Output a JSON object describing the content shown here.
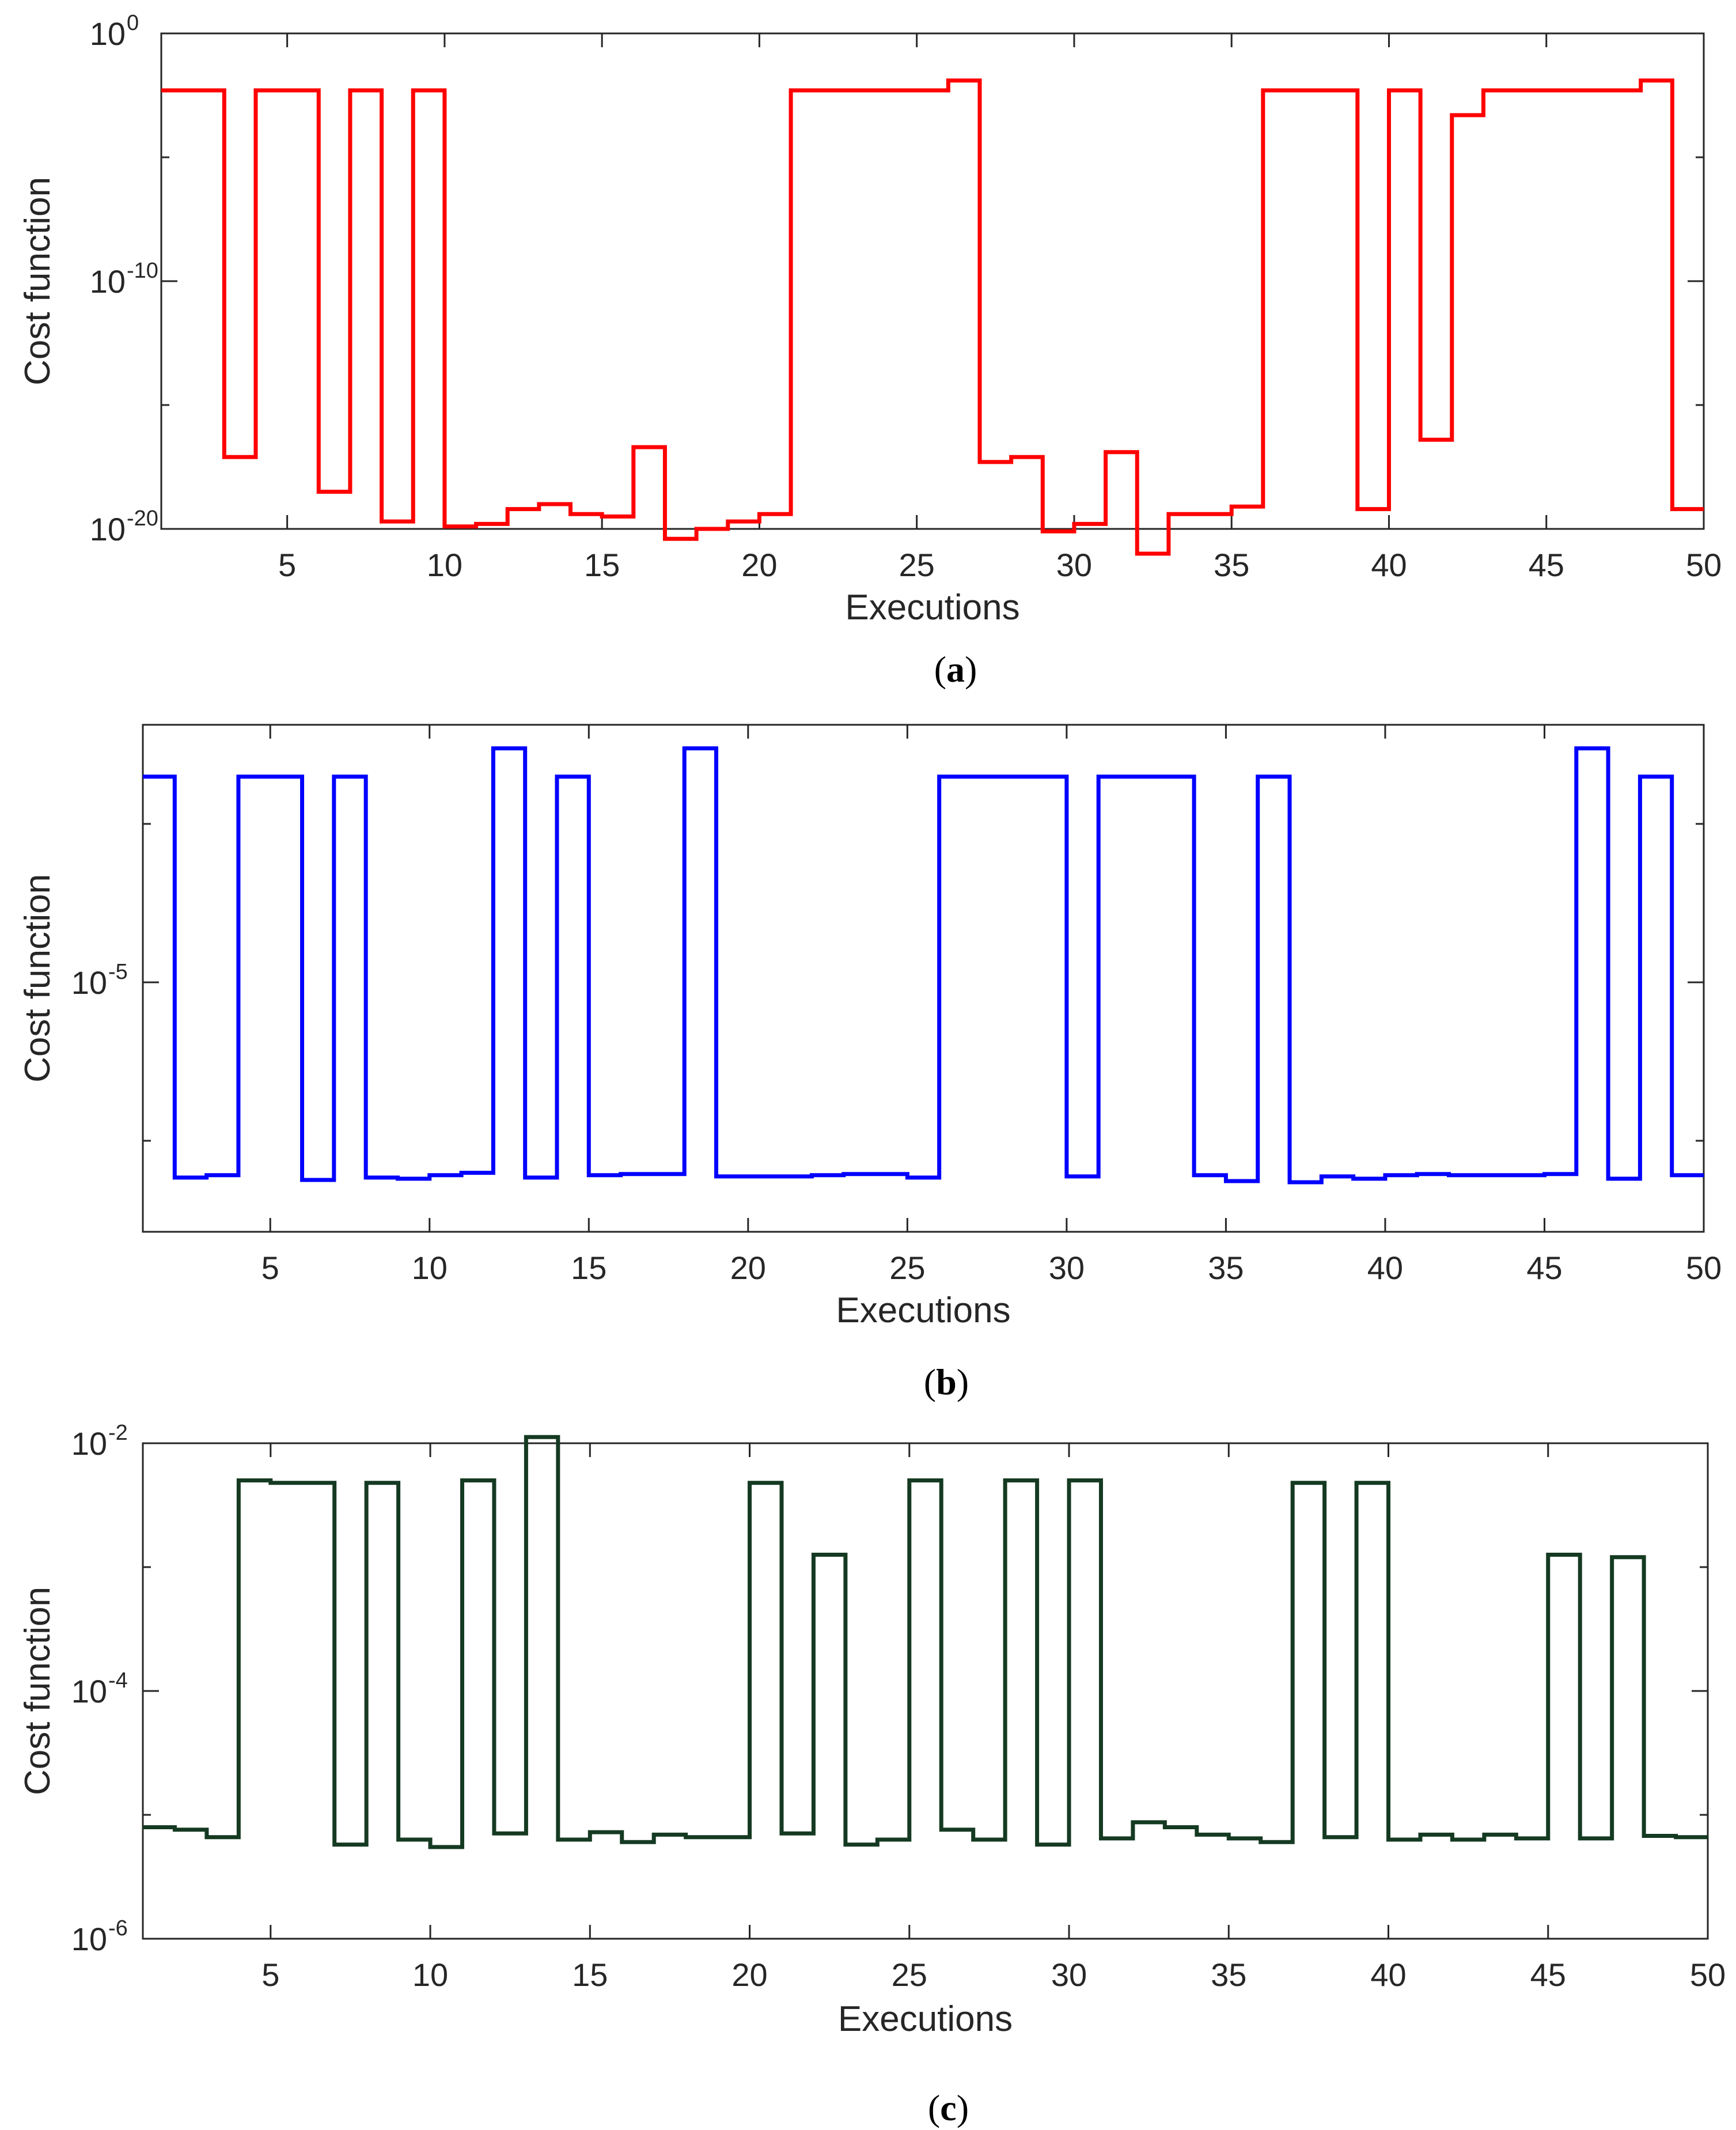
{
  "chart_data": [
    {
      "type": "line",
      "style": "stairs",
      "panel_label": "a",
      "color": "#ff0000",
      "xlabel": "Executions",
      "ylabel": "Cost function",
      "yscale": "log",
      "xlim": [
        1,
        50
      ],
      "ylim_exp": [
        -20,
        0
      ],
      "xticks": [
        "5",
        "10",
        "15",
        "20",
        "25",
        "30",
        "35",
        "40",
        "45",
        "50"
      ],
      "ytick_labels": [
        {
          "base": "10",
          "exp": "0"
        },
        {
          "base": "10",
          "exp": "-10"
        },
        {
          "base": "10",
          "exp": "-20"
        }
      ],
      "x": [
        1,
        2,
        3,
        4,
        5,
        6,
        7,
        8,
        9,
        10,
        11,
        12,
        13,
        14,
        15,
        16,
        17,
        18,
        19,
        20,
        21,
        22,
        23,
        24,
        25,
        26,
        27,
        28,
        29,
        30,
        31,
        32,
        33,
        34,
        35,
        36,
        37,
        38,
        39,
        40,
        41,
        42,
        43,
        44,
        45,
        46,
        47,
        48,
        49,
        50
      ],
      "values_log10": [
        -2.3,
        -2.3,
        -17.1,
        -2.3,
        -2.3,
        -18.5,
        -2.3,
        -19.7,
        -2.3,
        -19.9,
        -19.8,
        -19.2,
        -19.0,
        -19.4,
        -19.5,
        -16.7,
        -20.4,
        -20.0,
        -19.7,
        -19.4,
        -2.3,
        -2.3,
        -2.3,
        -2.3,
        -2.3,
        -1.9,
        -17.3,
        -17.1,
        -20.1,
        -19.8,
        -16.9,
        -21.0,
        -19.4,
        -19.4,
        -19.1,
        -2.3,
        -2.3,
        -2.3,
        -19.2,
        -2.3,
        -16.4,
        -3.3,
        -2.3,
        -2.3,
        -2.3,
        -2.3,
        -2.3,
        -1.9,
        -19.2,
        -19.2
      ]
    },
    {
      "type": "line",
      "style": "stairs",
      "panel_label": "b",
      "color": "#0000ff",
      "xlabel": "Executions",
      "ylabel": "Cost function",
      "yscale": "log",
      "xlim": [
        1,
        50
      ],
      "ylim_exp": [
        -5.8,
        -3.65
      ],
      "xticks": [
        "5",
        "10",
        "15",
        "20",
        "25",
        "30",
        "35",
        "40",
        "45",
        "50"
      ],
      "ytick_labels": [
        {
          "base": "10",
          "exp": "-5"
        }
      ],
      "x": [
        1,
        2,
        3,
        4,
        5,
        6,
        7,
        8,
        9,
        10,
        11,
        12,
        13,
        14,
        15,
        16,
        17,
        18,
        19,
        20,
        21,
        22,
        23,
        24,
        25,
        26,
        27,
        28,
        29,
        30,
        31,
        32,
        33,
        34,
        35,
        36,
        37,
        38,
        39,
        40,
        41,
        42,
        43,
        44,
        45,
        46,
        47,
        48,
        49,
        50
      ],
      "values_log10": [
        -3.87,
        -5.57,
        -5.56,
        -3.87,
        -3.87,
        -5.58,
        -3.87,
        -5.57,
        -5.575,
        -5.56,
        -5.55,
        -3.75,
        -5.57,
        -3.87,
        -5.56,
        -5.555,
        -5.555,
        -3.75,
        -5.565,
        -5.565,
        -5.565,
        -5.56,
        -5.555,
        -5.555,
        -5.57,
        -3.87,
        -3.87,
        -3.87,
        -3.87,
        -5.565,
        -3.87,
        -3.87,
        -3.87,
        -5.56,
        -5.585,
        -3.87,
        -5.59,
        -5.565,
        -5.575,
        -5.56,
        -5.555,
        -5.56,
        -5.56,
        -5.56,
        -5.555,
        -3.75,
        -5.575,
        -3.87,
        -5.56,
        -5.56
      ]
    },
    {
      "type": "line",
      "style": "stairs",
      "panel_label": "c",
      "color": "#153a22",
      "xlabel": "Executions",
      "ylabel": "Cost function",
      "yscale": "log",
      "xlim": [
        1,
        50
      ],
      "ylim_exp": [
        -6,
        -2
      ],
      "xticks": [
        "5",
        "10",
        "15",
        "20",
        "25",
        "30",
        "35",
        "40",
        "45",
        "50"
      ],
      "ytick_labels": [
        {
          "base": "10",
          "exp": "-2"
        },
        {
          "base": "10",
          "exp": "-4"
        },
        {
          "base": "10",
          "exp": "-6"
        }
      ],
      "x": [
        1,
        2,
        3,
        4,
        5,
        6,
        7,
        8,
        9,
        10,
        11,
        12,
        13,
        14,
        15,
        16,
        17,
        18,
        19,
        20,
        21,
        22,
        23,
        24,
        25,
        26,
        27,
        28,
        29,
        30,
        31,
        32,
        33,
        34,
        35,
        36,
        37,
        38,
        39,
        40,
        41,
        42,
        43,
        44,
        45,
        46,
        47,
        48,
        49,
        50
      ],
      "values_log10": [
        -5.1,
        -5.12,
        -5.18,
        -2.3,
        -2.32,
        -2.32,
        -5.24,
        -2.32,
        -5.2,
        -5.26,
        -2.3,
        -5.15,
        -1.95,
        -5.2,
        -5.14,
        -5.22,
        -5.16,
        -5.18,
        -5.18,
        -2.32,
        -5.15,
        -2.9,
        -5.24,
        -5.2,
        -2.3,
        -5.12,
        -5.2,
        -2.3,
        -5.24,
        -2.3,
        -5.19,
        -5.06,
        -5.1,
        -5.16,
        -5.19,
        -5.22,
        -2.32,
        -5.18,
        -2.32,
        -5.2,
        -5.16,
        -5.2,
        -5.16,
        -5.19,
        -2.9,
        -5.19,
        -2.92,
        -5.17,
        -5.18,
        -5.18
      ]
    }
  ]
}
